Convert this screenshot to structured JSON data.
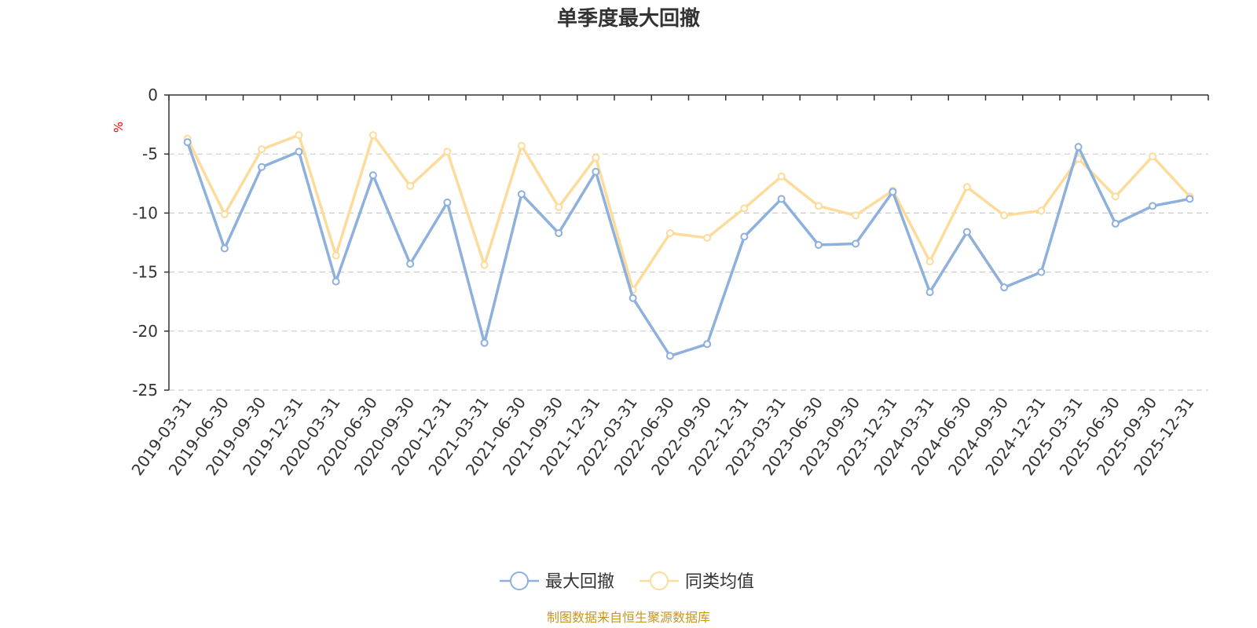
{
  "chart_data": {
    "type": "line",
    "title": "单季度最大回撤",
    "ylabel": "%",
    "ylim": [
      -25,
      0
    ],
    "yticks": [
      "0",
      "-5",
      "-10",
      "-15",
      "-20",
      "-25"
    ],
    "yticks_values": [
      0,
      -5,
      -10,
      -15,
      -20,
      -25
    ],
    "grid": true,
    "legend_position": "bottom-center",
    "categories": [
      "2019-03-31",
      "2019-06-30",
      "2019-09-30",
      "2019-12-31",
      "2020-03-31",
      "2020-06-30",
      "2020-09-30",
      "2020-12-31",
      "2021-03-31",
      "2021-06-30",
      "2021-09-30",
      "2021-12-31",
      "2022-03-31",
      "2022-06-30",
      "2022-09-30",
      "2022-12-31",
      "2023-03-31",
      "2023-06-30",
      "2023-09-30",
      "2023-12-31",
      "2024-03-31",
      "2024-06-30",
      "2024-09-30",
      "2024-12-31",
      "2025-03-31",
      "2025-06-30",
      "2025-09-30",
      "2025-12-31"
    ],
    "series": [
      {
        "name": "最大回撤",
        "color": "#8eb0dc",
        "values": [
          -4.0,
          -13.0,
          -6.1,
          -4.8,
          -15.8,
          -6.8,
          -14.3,
          -9.1,
          -21.0,
          -8.4,
          -11.7,
          -6.5,
          -17.2,
          -22.1,
          -21.1,
          -12.0,
          -8.8,
          -12.7,
          -12.6,
          -8.2,
          -16.7,
          -11.6,
          -16.3,
          -15.0,
          -4.4,
          -10.9,
          -9.4,
          -8.8
        ]
      },
      {
        "name": "同类均值",
        "color": "#fcdb9b",
        "values": [
          -3.7,
          -10.1,
          -4.6,
          -3.4,
          -13.6,
          -3.4,
          -7.7,
          -4.8,
          -14.4,
          -4.3,
          -9.5,
          -5.3,
          -16.5,
          -11.7,
          -12.1,
          -9.6,
          -6.9,
          -9.4,
          -10.2,
          -8.1,
          -14.1,
          -7.8,
          -10.2,
          -9.8,
          -5.4,
          -8.6,
          -5.2,
          -8.6
        ]
      }
    ],
    "source_text": "制图数据来自恒生聚源数据库",
    "colors": {
      "axis": "#333333",
      "grid": "#cccccc",
      "unit": "#ff0000",
      "source": "#c8961e"
    }
  }
}
